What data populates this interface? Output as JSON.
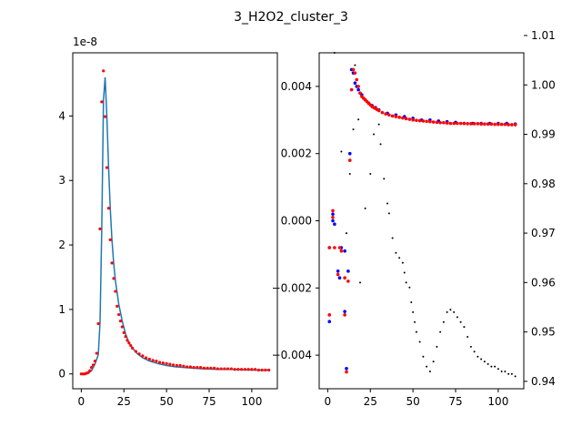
{
  "title": "3_H2O2_cluster_3",
  "chart_data": [
    {
      "type": "line",
      "panel": "left",
      "offset_text": "1e-8",
      "xlim": [
        -5,
        115
      ],
      "ylim": [
        -0.23,
        4.98
      ],
      "xticks": [
        0,
        25,
        50,
        75,
        100
      ],
      "xtick_labels": [
        "0",
        "25",
        "50",
        "75",
        "100"
      ],
      "yticks": [
        0,
        1,
        2,
        3,
        4
      ],
      "ytick_labels": [
        "0",
        "1",
        "2",
        "3",
        "4"
      ],
      "colors": {
        "line": "#1f77b4",
        "markers": "#ff0000"
      },
      "series": [
        {
          "style": "line",
          "x": [
            0,
            2,
            4,
            6,
            8,
            10,
            11,
            12,
            13,
            14,
            15,
            16,
            17,
            18,
            19,
            20,
            22,
            24,
            26,
            28,
            30,
            33,
            36,
            40,
            45,
            50,
            55,
            60,
            70,
            80,
            90,
            100,
            110
          ],
          "y": [
            0,
            0,
            0.01,
            0.05,
            0.15,
            0.3,
            0.8,
            2.25,
            4.25,
            4.6,
            4.0,
            3.2,
            2.55,
            2.08,
            1.72,
            1.45,
            1.08,
            0.82,
            0.62,
            0.48,
            0.4,
            0.31,
            0.25,
            0.2,
            0.16,
            0.13,
            0.11,
            0.1,
            0.08,
            0.07,
            0.07,
            0.06,
            0.06
          ]
        },
        {
          "style": "markers",
          "x": [
            0,
            1,
            2,
            3,
            4,
            5,
            6,
            7,
            8,
            9,
            10,
            11,
            12,
            13,
            14,
            15,
            16,
            17,
            18,
            19,
            20,
            21,
            22,
            23,
            24,
            25,
            26,
            27,
            28,
            29,
            30,
            32,
            34,
            36,
            38,
            40,
            42,
            44,
            46,
            48,
            50,
            52,
            54,
            56,
            58,
            60,
            62,
            64,
            66,
            68,
            70,
            72,
            74,
            76,
            78,
            80,
            82,
            84,
            86,
            88,
            90,
            92,
            94,
            96,
            98,
            100,
            102,
            104,
            106,
            108,
            110
          ],
          "y": [
            0,
            0,
            0,
            0.01,
            0.02,
            0.05,
            0.1,
            0.14,
            0.2,
            0.32,
            0.78,
            2.25,
            4.22,
            4.7,
            3.99,
            3.2,
            2.57,
            2.08,
            1.72,
            1.48,
            1.28,
            1.05,
            0.92,
            0.82,
            0.73,
            0.64,
            0.58,
            0.52,
            0.48,
            0.44,
            0.4,
            0.35,
            0.31,
            0.28,
            0.25,
            0.23,
            0.21,
            0.2,
            0.18,
            0.17,
            0.16,
            0.15,
            0.14,
            0.13,
            0.13,
            0.12,
            0.11,
            0.11,
            0.1,
            0.1,
            0.1,
            0.09,
            0.09,
            0.09,
            0.09,
            0.08,
            0.08,
            0.08,
            0.08,
            0.08,
            0.07,
            0.07,
            0.07,
            0.07,
            0.07,
            0.07,
            0.07,
            0.06,
            0.06,
            0.06,
            0.06
          ]
        }
      ]
    },
    {
      "type": "scatter",
      "panel": "right",
      "xlim": [
        -5,
        115
      ],
      "ylim": [
        -0.005,
        0.005
      ],
      "y2lim": [
        0.9385,
        1.0065
      ],
      "xticks": [
        0,
        25,
        50,
        75,
        100
      ],
      "xtick_labels": [
        "0",
        "25",
        "50",
        "75",
        "100"
      ],
      "yticks": [
        -0.004,
        -0.002,
        0.0,
        0.002,
        0.004
      ],
      "ytick_labels": [
        "−0.004",
        "−0.002",
        "0.000",
        "0.002",
        "0.004"
      ],
      "y2ticks": [
        0.94,
        0.95,
        0.96,
        0.97,
        0.98,
        0.99,
        1.0,
        1.01
      ],
      "y2tick_labels": [
        "0.94",
        "0.95",
        "0.96",
        "0.97",
        "0.98",
        "0.99",
        "1.00",
        "1.01"
      ],
      "colors": {
        "blue": "#0000ff",
        "red": "#ff0000",
        "black": "#000000"
      },
      "series": [
        {
          "style": "blue",
          "axis": "left",
          "x": [
            1,
            1,
            3,
            3,
            4,
            6,
            7,
            8,
            10,
            10,
            11,
            12,
            13,
            14,
            15,
            16,
            17,
            18,
            19,
            20,
            22,
            24,
            26,
            28,
            30,
            35,
            40,
            45,
            50,
            55,
            60,
            65,
            70,
            75,
            80,
            85,
            90,
            95,
            100,
            105,
            110
          ],
          "y": [
            -0.003,
            -0.0008,
            0.0,
            0.0002,
            -0.0001,
            -0.0015,
            -0.0017,
            -0.0008,
            -0.0009,
            -0.0027,
            -0.0044,
            -0.0015,
            0.002,
            0.0045,
            0.0044,
            0.0041,
            0.004,
            0.0039,
            0.0038,
            0.00375,
            0.0036,
            0.0035,
            0.00343,
            0.00337,
            0.0033,
            0.0032,
            0.00315,
            0.0031,
            0.00305,
            0.003,
            0.003,
            0.00297,
            0.00295,
            0.00293,
            0.0029,
            0.0029,
            0.0029,
            0.0029,
            0.0029,
            0.0029,
            0.00288
          ]
        },
        {
          "style": "red",
          "axis": "left",
          "x": [
            1,
            1,
            3,
            3,
            4,
            6,
            7,
            8,
            10,
            10,
            11,
            12,
            13,
            14,
            15,
            16,
            17,
            18,
            19,
            20,
            21,
            22,
            23,
            24,
            25,
            26,
            27,
            28,
            29,
            30,
            32,
            34,
            36,
            38,
            40,
            42,
            44,
            46,
            48,
            50,
            52,
            54,
            56,
            58,
            60,
            62,
            64,
            66,
            68,
            70,
            72,
            74,
            76,
            78,
            80,
            82,
            84,
            86,
            88,
            90,
            92,
            94,
            96,
            98,
            100,
            102,
            104,
            106,
            108,
            110
          ],
          "y": [
            -0.0028,
            -0.0008,
            0.0001,
            0.0003,
            -0.0008,
            -0.0016,
            -0.0008,
            -0.0009,
            -0.0017,
            -0.0028,
            -0.0045,
            -0.0018,
            0.0018,
            0.0039,
            0.0045,
            0.0044,
            0.0042,
            0.004,
            0.0038,
            0.0037,
            0.00365,
            0.0036,
            0.00355,
            0.0035,
            0.00345,
            0.0034,
            0.00337,
            0.00334,
            0.00331,
            0.00328,
            0.00322,
            0.00318,
            0.00315,
            0.00312,
            0.0031,
            0.00308,
            0.00306,
            0.00304,
            0.00302,
            0.003,
            0.00299,
            0.00298,
            0.00297,
            0.00296,
            0.00295,
            0.00294,
            0.00293,
            0.00292,
            0.00292,
            0.00291,
            0.0029,
            0.0029,
            0.0029,
            0.0029,
            0.0029,
            0.00289,
            0.00289,
            0.00289,
            0.00289,
            0.00288,
            0.00288,
            0.00288,
            0.00288,
            0.00287,
            0.00287,
            0.00287,
            0.00287,
            0.00286,
            0.00286,
            0.00286
          ]
        },
        {
          "style": "black",
          "axis": "right",
          "x": [
            4,
            8,
            11,
            13,
            15,
            16,
            18,
            19,
            22,
            25,
            27,
            30,
            31,
            33,
            35,
            36,
            38,
            40,
            42,
            44,
            45,
            46,
            48,
            49,
            50,
            51,
            52,
            54,
            56,
            58,
            60,
            62,
            64,
            66,
            68,
            70,
            72,
            74,
            76,
            78,
            80,
            82,
            84,
            86,
            88,
            90,
            92,
            94,
            96,
            98,
            100,
            102,
            104,
            106,
            108,
            110
          ],
          "y": [
            1.0065,
            0.9865,
            0.97,
            0.982,
            0.991,
            1.004,
            0.993,
            0.96,
            0.975,
            0.982,
            0.99,
            0.992,
            0.988,
            0.981,
            0.976,
            0.974,
            0.969,
            0.966,
            0.965,
            0.964,
            0.962,
            0.96,
            0.959,
            0.956,
            0.954,
            0.952,
            0.95,
            0.948,
            0.945,
            0.943,
            0.942,
            0.944,
            0.947,
            0.95,
            0.952,
            0.954,
            0.9545,
            0.954,
            0.953,
            0.952,
            0.951,
            0.949,
            0.947,
            0.946,
            0.945,
            0.9445,
            0.944,
            0.9435,
            0.943,
            0.943,
            0.9425,
            0.942,
            0.942,
            0.9415,
            0.9415,
            0.941
          ]
        }
      ]
    }
  ]
}
